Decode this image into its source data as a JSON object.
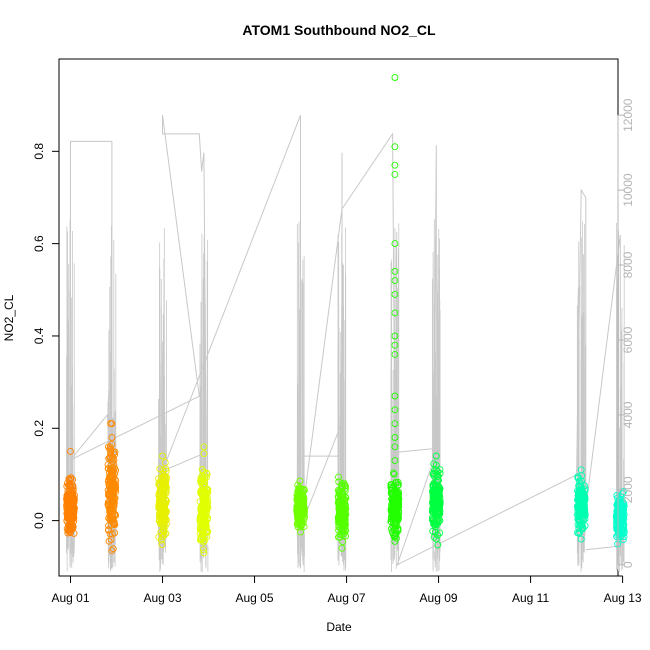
{
  "chart_data": {
    "type": "scatter",
    "title": "ATOM1 Southbound NO2_CL",
    "xlabel": "Date",
    "ylabel": "NO2_CL",
    "x_unit": "days in August",
    "xlim": [
      0.75,
      12.9
    ],
    "ylim": [
      -0.12,
      1.0
    ],
    "y2lim": [
      -300,
      13500
    ],
    "x_ticks": [
      1,
      3,
      5,
      7,
      9,
      11,
      13
    ],
    "x_tick_labels": [
      "Aug 01",
      "Aug 03",
      "Aug 05",
      "Aug 07",
      "Aug 09",
      "Aug 11",
      "Aug 13"
    ],
    "y_ticks": [
      0.0,
      0.2,
      0.4,
      0.6,
      0.8
    ],
    "y_tick_labels": [
      "0.0",
      "0.2",
      "0.4",
      "0.6",
      "0.8"
    ],
    "y2_ticks": [
      0,
      2000,
      4000,
      6000,
      8000,
      10000,
      12000
    ],
    "y2_tick_labels": [
      "0",
      "2000",
      "4000",
      "6000",
      "8000",
      "10000",
      "12000"
    ],
    "grid": false,
    "series": [
      {
        "marker": "open-circle",
        "clusters": [
          {
            "day": 1.0,
            "color": "#FF8000",
            "center": 0.03,
            "spread": 0.035,
            "extremes": [
              0.15,
              -0.015
            ]
          },
          {
            "day": 1.9,
            "color": "#FF8A00",
            "center": 0.06,
            "spread": 0.06,
            "extremes": [
              0.21,
              0.18,
              0.165,
              -0.065
            ]
          },
          {
            "day": 3.0,
            "color": "#E6F000",
            "center": 0.04,
            "spread": 0.04,
            "extremes": [
              0.14,
              -0.035
            ]
          },
          {
            "day": 3.9,
            "color": "#E0FF00",
            "center": 0.03,
            "spread": 0.05,
            "extremes": [
              0.16,
              0.145,
              -0.07
            ]
          },
          {
            "day": 6.0,
            "color": "#70FF00",
            "center": 0.03,
            "spread": 0.025,
            "extremes": [
              0.07,
              -0.025
            ]
          },
          {
            "day": 6.9,
            "color": "#55FF00",
            "center": 0.02,
            "spread": 0.035,
            "extremes": [
              0.08,
              -0.06
            ]
          },
          {
            "day": 8.05,
            "color": "#22FF00",
            "center": 0.03,
            "spread": 0.035,
            "extremes": [
              0.96,
              0.81,
              0.77,
              0.75,
              0.6,
              0.54,
              0.52,
              0.49,
              0.45,
              0.4,
              0.38,
              0.36,
              0.27,
              0.24,
              0.21,
              0.18,
              0.16,
              0.13,
              -0.045
            ]
          },
          {
            "day": 8.95,
            "color": "#00FF40",
            "center": 0.04,
            "spread": 0.04,
            "extremes": [
              0.14,
              0.12,
              0.11,
              -0.04
            ]
          },
          {
            "day": 12.1,
            "color": "#00FFB0",
            "center": 0.03,
            "spread": 0.035,
            "extremes": [
              0.11,
              -0.04
            ]
          },
          {
            "day": 12.95,
            "color": "#00FFCC",
            "center": 0.01,
            "spread": 0.025,
            "extremes": [
              0.045,
              -0.035
            ]
          }
        ]
      },
      {
        "axis": "right",
        "color": "#c8c8c8",
        "line": [
          [
            1.0,
            6500
          ],
          [
            1.0,
            11300
          ],
          [
            1.0,
            11300
          ],
          [
            1.9,
            11300
          ],
          [
            1.9,
            10000
          ],
          [
            1.9,
            2000
          ],
          [
            1.8,
            4000
          ],
          [
            1.0,
            2800
          ],
          [
            3.8,
            4500
          ],
          [
            3.0,
            12000
          ],
          [
            3.0,
            11500
          ],
          [
            3.8,
            11500
          ],
          [
            3.85,
            10500
          ],
          [
            3.9,
            11000
          ],
          [
            3.95,
            3000
          ],
          [
            3.0,
            2500
          ],
          [
            6.0,
            12000
          ],
          [
            6.0,
            2900
          ],
          [
            6.9,
            2900
          ],
          [
            6.9,
            11000
          ],
          [
            6.9,
            3800
          ],
          [
            6.0,
            1000
          ],
          [
            6.9,
            9500
          ],
          [
            8.0,
            11500
          ],
          [
            8.05,
            3000
          ],
          [
            8.9,
            3100
          ],
          [
            8.95,
            11200
          ],
          [
            8.95,
            3000
          ],
          [
            8.1,
            0
          ],
          [
            12.0,
            2400
          ],
          [
            12.1,
            10000
          ],
          [
            12.2,
            9800
          ],
          [
            12.2,
            1500
          ],
          [
            12.95,
            8800
          ],
          [
            12.95,
            500
          ],
          [
            12.2,
            400
          ]
        ]
      }
    ]
  }
}
